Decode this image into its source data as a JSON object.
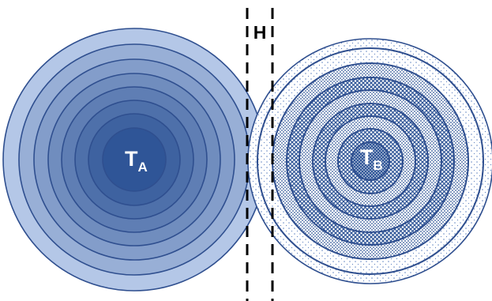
{
  "labels": {
    "gap": "H",
    "left_main": "T",
    "left_sub": "A",
    "right_main": "T",
    "right_sub": "B"
  },
  "colors": {
    "left_dark": "#2f5597",
    "left_light": "#b4c7e7",
    "right_ink": "#2f5597",
    "outline": "#2f4f8f",
    "guide_line": "#000000",
    "label_text": "#ffffff",
    "gap_text": "#000000"
  },
  "structure": {
    "left_ring_count": 8,
    "right_ring_count": 9,
    "right_center_fill": "dots",
    "right_ring_pattern_sequence": [
      "sparse-dots",
      "sparse-dots",
      "dots",
      "crosshatch",
      "dots",
      "crosshatch",
      "dots",
      "crosshatch",
      "dense-dots"
    ]
  }
}
